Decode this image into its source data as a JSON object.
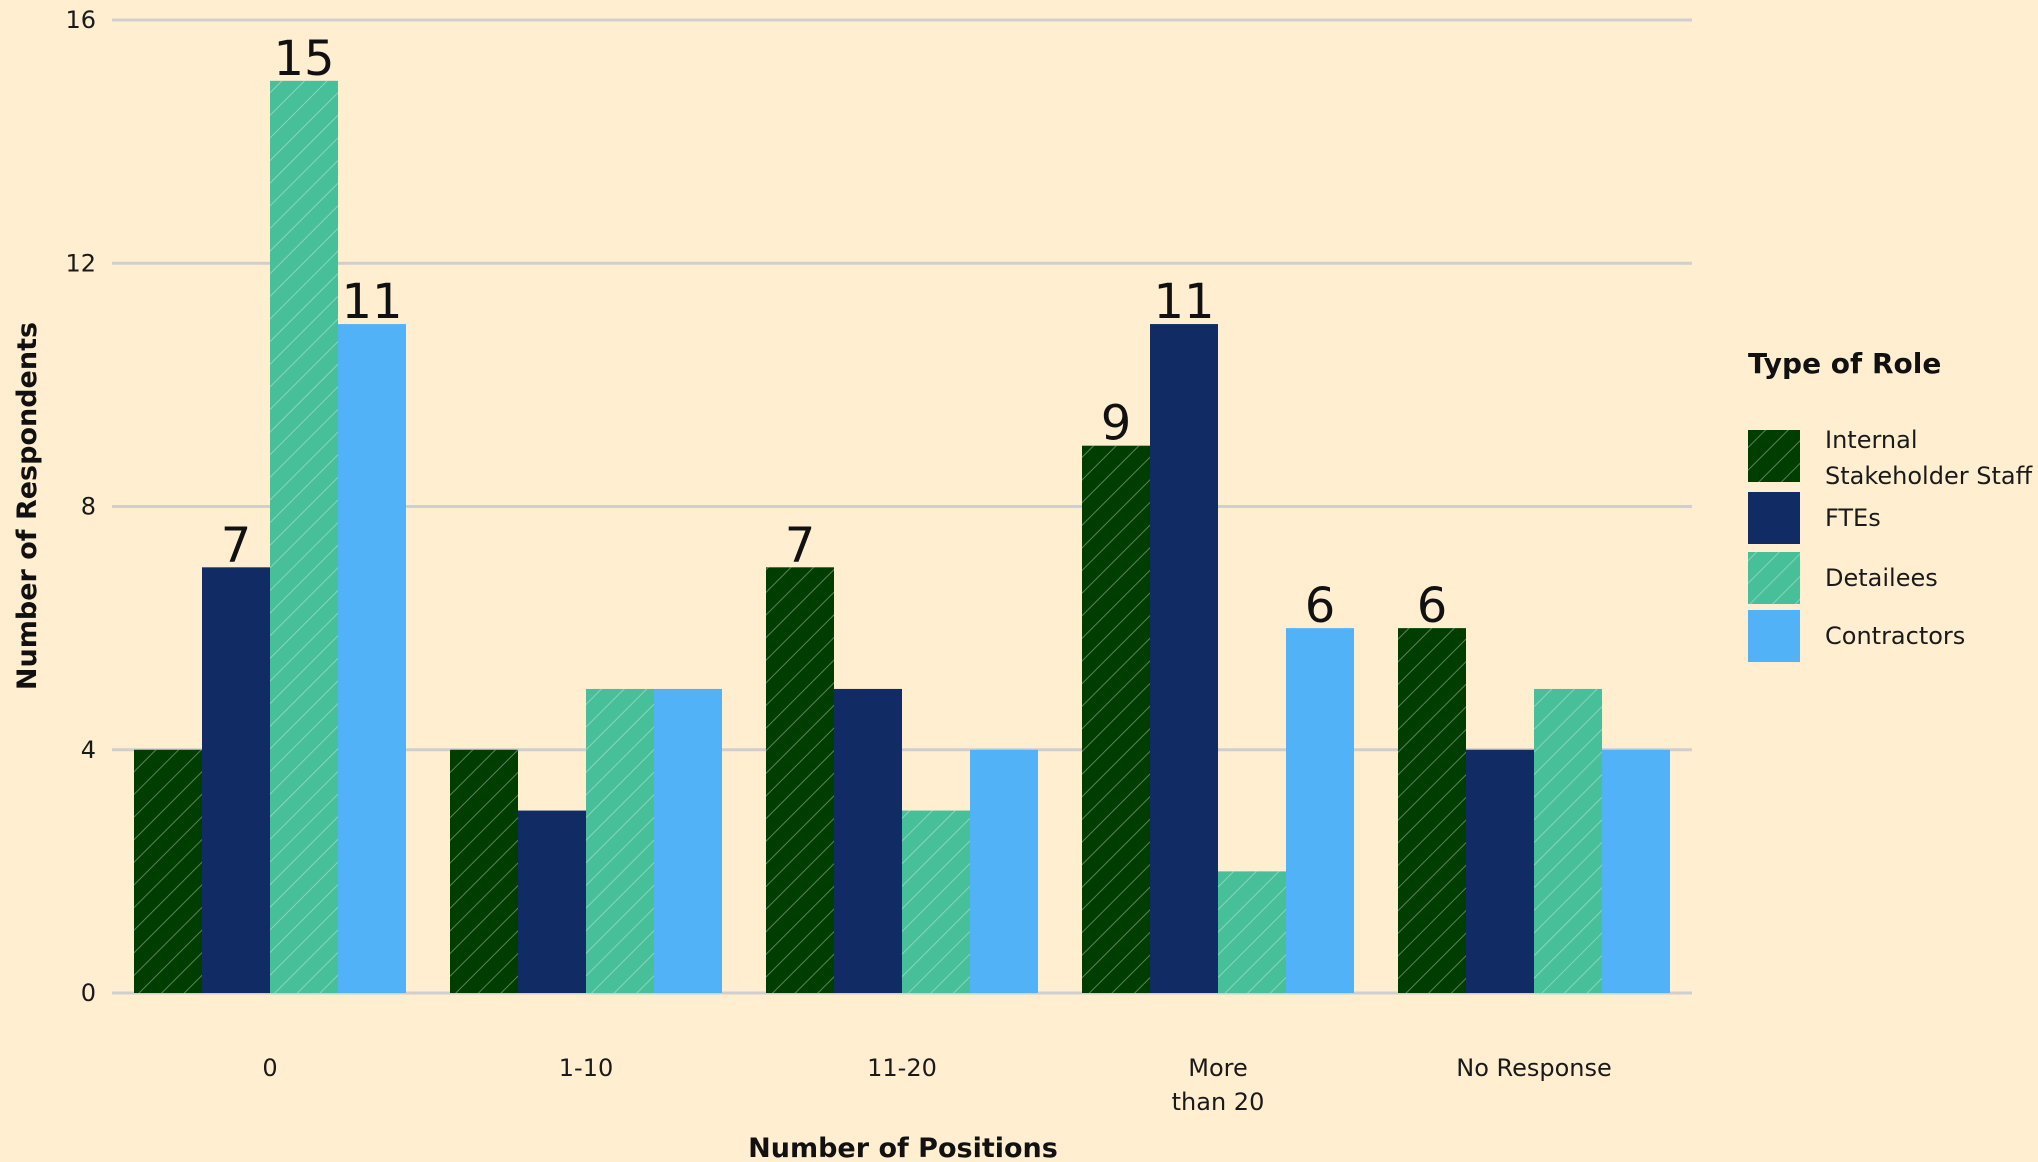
{
  "chart_data": {
    "type": "bar",
    "categories": [
      "0",
      "1-10",
      "11-20",
      "More than 20",
      "No Response"
    ],
    "category_labels": [
      [
        "0"
      ],
      [
        "1-10"
      ],
      [
        "11-20"
      ],
      [
        "More",
        "than 20"
      ],
      [
        "No Response"
      ]
    ],
    "series": [
      {
        "name": "Internal Stakeholder Staff",
        "legend_lines": [
          "Internal",
          "Stakeholder Staff"
        ],
        "color": "#003D00",
        "hatched": true,
        "values": [
          4,
          4,
          7,
          9,
          6
        ]
      },
      {
        "name": "FTEs",
        "legend_lines": [
          "FTEs"
        ],
        "color": "#112C64",
        "hatched": false,
        "values": [
          7,
          3,
          5,
          11,
          4
        ]
      },
      {
        "name": "Detailees",
        "legend_lines": [
          "Detailees"
        ],
        "color": "#47BF98",
        "hatched": true,
        "values": [
          15,
          5,
          3,
          2,
          5
        ]
      },
      {
        "name": "Contractors",
        "legend_lines": [
          "Contractors"
        ],
        "color": "#52B2F7",
        "hatched": false,
        "values": [
          11,
          5,
          4,
          6,
          4
        ]
      }
    ],
    "data_labels": [
      {
        "series": 1,
        "category": 0,
        "text": "7"
      },
      {
        "series": 2,
        "category": 0,
        "text": "15"
      },
      {
        "series": 3,
        "category": 0,
        "text": "11"
      },
      {
        "series": 0,
        "category": 2,
        "text": "7"
      },
      {
        "series": 0,
        "category": 3,
        "text": "9"
      },
      {
        "series": 1,
        "category": 3,
        "text": "11"
      },
      {
        "series": 3,
        "category": 3,
        "text": "6"
      },
      {
        "series": 0,
        "category": 4,
        "text": "6"
      }
    ],
    "xlabel": "Number of Positions",
    "ylabel": "Number of Respondents",
    "ylim": [
      0,
      16
    ],
    "yticks": [
      "0",
      "4",
      "8",
      "12",
      "16"
    ],
    "grid": "horizontal",
    "legend_title": "Type of Role",
    "legend_position": "right"
  }
}
